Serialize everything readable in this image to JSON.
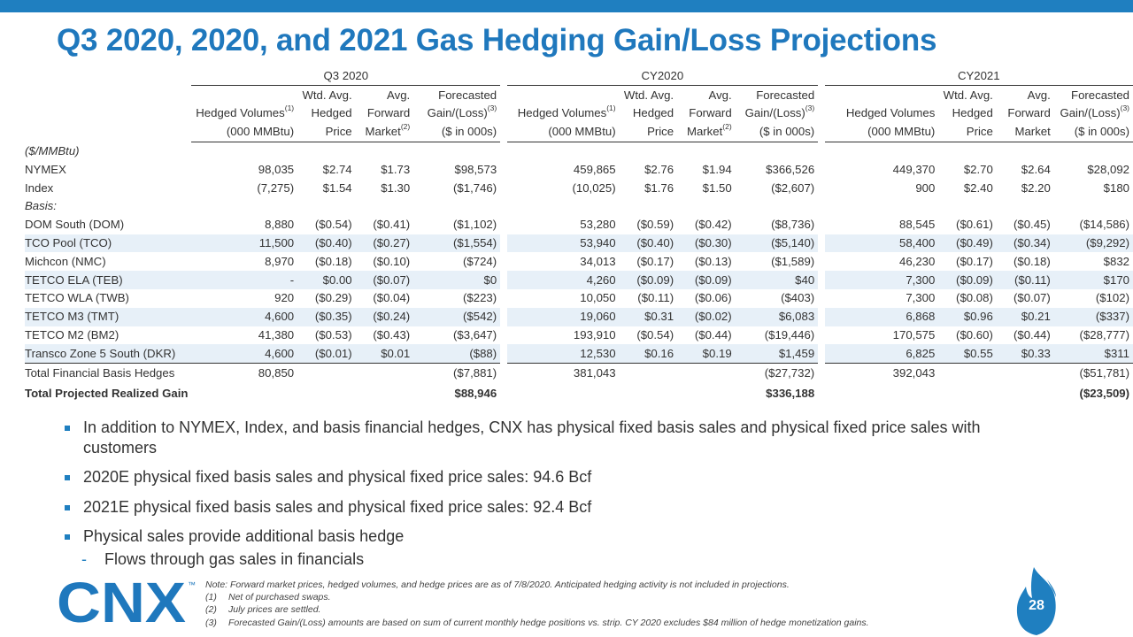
{
  "title": "Q3 2020, 2020, and 2021 Gas Hedging Gain/Loss Projections",
  "groups": [
    "Q3 2020",
    "CY2020",
    "CY2021"
  ],
  "headers": {
    "q3": {
      "vol": [
        "",
        "Hedged Volumes",
        "(000 MMBtu)"
      ],
      "vol_sup": "(1)",
      "price": [
        "Wtd. Avg.",
        "Hedged",
        "Price"
      ],
      "fwd": [
        "Avg.",
        "Forward",
        "Market"
      ],
      "fwd_sup": "(2)",
      "gain": [
        "Forecasted",
        "Gain/(Loss)",
        "($ in 000s)"
      ],
      "gain_sup": "(3)"
    },
    "cy20": {
      "vol": [
        "",
        "Hedged Volumes",
        "(000 MMBtu)"
      ],
      "vol_sup": "(1)",
      "price": [
        "Wtd. Avg.",
        "Hedged",
        "Price"
      ],
      "fwd": [
        "Avg.",
        "Forward",
        "Market"
      ],
      "fwd_sup": "(2)",
      "gain": [
        "Forecasted",
        "Gain/(Loss)",
        "($ in 000s)"
      ],
      "gain_sup": "(3)"
    },
    "cy21": {
      "vol": [
        "",
        "Hedged Volumes",
        "(000 MMBtu)"
      ],
      "price": [
        "Wtd. Avg.",
        "Hedged",
        "Price"
      ],
      "fwd": [
        "Avg.",
        "Forward",
        "Market"
      ],
      "gain": [
        "Forecasted",
        "Gain/(Loss)",
        "($ in 000s)"
      ],
      "gain_sup": "(3)"
    }
  },
  "unit_label": "($/MMBtu)",
  "rows": {
    "nymex": {
      "label": "NYMEX",
      "q3": [
        "98,035",
        "$2.74",
        "$1.73",
        "$98,573"
      ],
      "cy20": [
        "459,865",
        "$2.76",
        "$1.94",
        "$366,526"
      ],
      "cy21": [
        "449,370",
        "$2.70",
        "$2.64",
        "$28,092"
      ]
    },
    "index": {
      "label": "Index",
      "q3": [
        "(7,275)",
        "$1.54",
        "$1.30",
        "($1,746)"
      ],
      "cy20": [
        "(10,025)",
        "$1.76",
        "$1.50",
        "($2,607)"
      ],
      "cy21": [
        "900",
        "$2.40",
        "$2.20",
        "$180"
      ]
    },
    "basis_label": "Basis:",
    "basis": [
      {
        "label": "DOM South (DOM)",
        "q3": [
          "8,880",
          "($0.54)",
          "($0.41)",
          "($1,102)"
        ],
        "cy20": [
          "53,280",
          "($0.59)",
          "($0.42)",
          "($8,736)"
        ],
        "cy21": [
          "88,545",
          "($0.61)",
          "($0.45)",
          "($14,586)"
        ]
      },
      {
        "label": "TCO Pool (TCO)",
        "q3": [
          "11,500",
          "($0.40)",
          "($0.27)",
          "($1,554)"
        ],
        "cy20": [
          "53,940",
          "($0.40)",
          "($0.30)",
          "($5,140)"
        ],
        "cy21": [
          "58,400",
          "($0.49)",
          "($0.34)",
          "($9,292)"
        ]
      },
      {
        "label": "Michcon (NMC)",
        "q3": [
          "8,970",
          "($0.18)",
          "($0.10)",
          "($724)"
        ],
        "cy20": [
          "34,013",
          "($0.17)",
          "($0.13)",
          "($1,589)"
        ],
        "cy21": [
          "46,230",
          "($0.17)",
          "($0.18)",
          "$832"
        ]
      },
      {
        "label": "TETCO ELA (TEB)",
        "q3": [
          "-",
          "$0.00",
          "($0.07)",
          "$0"
        ],
        "cy20": [
          "4,260",
          "($0.09)",
          "($0.09)",
          "$40"
        ],
        "cy21": [
          "7,300",
          "($0.09)",
          "($0.11)",
          "$170"
        ]
      },
      {
        "label": "TETCO WLA (TWB)",
        "q3": [
          "920",
          "($0.29)",
          "($0.04)",
          "($223)"
        ],
        "cy20": [
          "10,050",
          "($0.11)",
          "($0.06)",
          "($403)"
        ],
        "cy21": [
          "7,300",
          "($0.08)",
          "($0.07)",
          "($102)"
        ]
      },
      {
        "label": "TETCO M3 (TMT)",
        "q3": [
          "4,600",
          "($0.35)",
          "($0.24)",
          "($542)"
        ],
        "cy20": [
          "19,060",
          "$0.31",
          "($0.02)",
          "$6,083"
        ],
        "cy21": [
          "6,868",
          "$0.96",
          "$0.21",
          "($337)"
        ]
      },
      {
        "label": "TETCO M2 (BM2)",
        "q3": [
          "41,380",
          "($0.53)",
          "($0.43)",
          "($3,647)"
        ],
        "cy20": [
          "193,910",
          "($0.54)",
          "($0.44)",
          "($19,446)"
        ],
        "cy21": [
          "170,575",
          "($0.60)",
          "($0.44)",
          "($28,777)"
        ]
      },
      {
        "label": "Transco Zone 5 South (DKR)",
        "q3": [
          "4,600",
          "($0.01)",
          "$0.01",
          "($88)"
        ],
        "cy20": [
          "12,530",
          "$0.16",
          "$0.19",
          "$1,459"
        ],
        "cy21": [
          "6,825",
          "$0.55",
          "$0.33",
          "$311"
        ]
      }
    ],
    "total_basis": {
      "label": "Total Financial Basis Hedges",
      "q3": [
        "80,850",
        "",
        "",
        "($7,881)"
      ],
      "cy20": [
        "381,043",
        "",
        "",
        "($27,732)"
      ],
      "cy21": [
        "392,043",
        "",
        "",
        "($51,781)"
      ]
    },
    "total_realized": {
      "label": "Total Projected Realized Gain",
      "q3": [
        "",
        "",
        "",
        "$88,946"
      ],
      "cy20": [
        "",
        "",
        "",
        "$336,188"
      ],
      "cy21": [
        "",
        "",
        "",
        "($23,509)"
      ]
    }
  },
  "bullets": [
    "In addition to NYMEX, Index, and basis financial hedges, CNX has physical fixed basis sales and physical fixed price sales with customers",
    "2020E physical fixed basis sales and physical fixed price sales: 94.6 Bcf",
    "2021E physical fixed basis sales and physical fixed price sales: 92.4 Bcf",
    "Physical sales provide additional basis hedge"
  ],
  "sub_bullet": "Flows through gas sales in financials",
  "notes": {
    "main": "Note: Forward market prices, hedged volumes, and hedge prices are as of 7/8/2020. Anticipated hedging activity is not included in projections.",
    "items": [
      {
        "k": "(1)",
        "t": "Net of purchased swaps."
      },
      {
        "k": "(2)",
        "t": "July prices are settled."
      },
      {
        "k": "(3)",
        "t": "Forecasted Gain/(Loss) amounts are based on sum of current monthly hedge positions vs. strip. CY 2020 excludes $84 million of hedge monetization gains."
      }
    ]
  },
  "logo": {
    "text": "CNX",
    "tm": "™",
    "color": "#1f78bd"
  },
  "page_number": "28",
  "colors": {
    "accent": "#1f78bd",
    "topbar": "#1f7fc0",
    "row_shade": "#e7f0f8"
  }
}
